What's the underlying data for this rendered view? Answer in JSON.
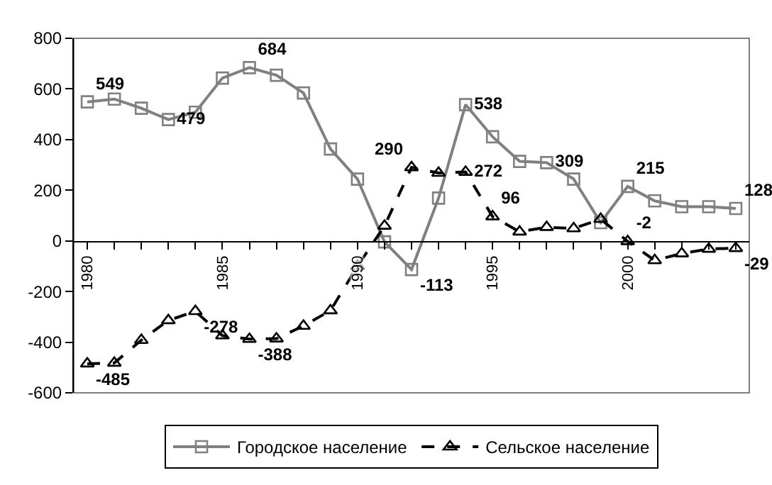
{
  "chart_data": {
    "type": "line",
    "categories": [
      "1980",
      null,
      null,
      null,
      null,
      "1985",
      null,
      null,
      null,
      null,
      "1990",
      null,
      null,
      null,
      null,
      "1995",
      null,
      null,
      null,
      null,
      "2000",
      null,
      null,
      null,
      null
    ],
    "series": [
      {
        "name": "Городское население",
        "color": "#808080",
        "marker": "square",
        "line_style": "solid",
        "values": [
          549,
          560,
          524,
          479,
          508,
          643,
          684,
          654,
          584,
          363,
          244,
          -4,
          -113,
          169,
          538,
          411,
          314,
          309,
          244,
          72,
          215,
          158,
          135,
          135,
          128
        ],
        "value_labels": [
          "549",
          null,
          null,
          "479",
          null,
          null,
          "684",
          null,
          null,
          null,
          null,
          null,
          "-113",
          null,
          "538",
          null,
          null,
          "309",
          null,
          null,
          "215",
          null,
          null,
          null,
          "128"
        ]
      },
      {
        "name": "Сельское население",
        "color": "#000000",
        "marker": "triangle",
        "line_style": "dashed",
        "values": [
          -485,
          -482,
          -392,
          -314,
          -278,
          -374,
          -388,
          -386,
          -336,
          -275,
          -100,
          59,
          290,
          268,
          272,
          96,
          36,
          54,
          49,
          86,
          -2,
          -77,
          -50,
          -32,
          -29
        ],
        "value_labels": [
          "-485",
          null,
          null,
          null,
          "-278",
          null,
          "-388",
          null,
          null,
          null,
          null,
          null,
          "290",
          null,
          "272",
          "96",
          null,
          null,
          null,
          null,
          "-2",
          null,
          null,
          null,
          "-29"
        ]
      }
    ],
    "ylim": [
      -600,
      800
    ],
    "yticks": [
      -600,
      -400,
      -200,
      0,
      200,
      400,
      600,
      800
    ],
    "grid": false,
    "legend": "bottom"
  }
}
